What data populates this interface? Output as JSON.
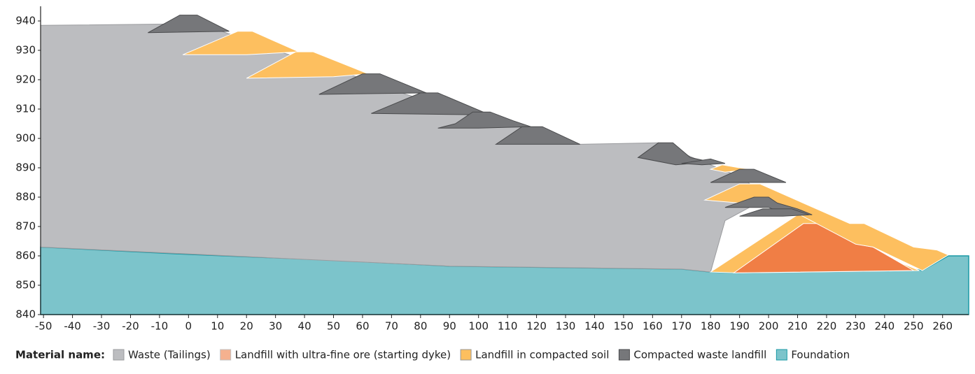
{
  "chart_data": {
    "type": "cross-section",
    "xlim": [
      -51,
      269
    ],
    "ylim": [
      840,
      945
    ],
    "xticks": [
      -50,
      -40,
      -30,
      -20,
      -10,
      0,
      10,
      20,
      30,
      40,
      50,
      60,
      70,
      80,
      90,
      100,
      110,
      120,
      130,
      140,
      150,
      160,
      170,
      180,
      190,
      200,
      210,
      220,
      230,
      240,
      250,
      260
    ],
    "yticks": [
      840,
      850,
      860,
      870,
      880,
      890,
      900,
      910,
      920,
      930,
      940
    ],
    "legend_title": "Material name:",
    "materials": [
      {
        "name": "Waste (Tailings)",
        "color": "#bcbdc0"
      },
      {
        "name": "Landfill with ultra-fine ore (starting dyke)",
        "color": "#f07e45"
      },
      {
        "name": "Landfill in compacted soil",
        "color": "#fdbf5f"
      },
      {
        "name": "Compacted waste landfill",
        "color": "#76777a"
      },
      {
        "name": "Foundation",
        "color": "#7cc4cb"
      }
    ],
    "regions": [
      {
        "material": 4,
        "x": [
          -51,
          0,
          50,
          90,
          170,
          180,
          190,
          230,
          235,
          250,
          253,
          262,
          269,
          269,
          -51
        ],
        "y": [
          863,
          860.5,
          858.5,
          856.5,
          855.5,
          854.5,
          854.2,
          855,
          856,
          855.5,
          855,
          860,
          860,
          840,
          840
        ]
      },
      {
        "material": 0,
        "x": [
          -51,
          -2,
          10,
          30,
          55,
          75,
          95,
          115,
          135,
          162,
          175,
          190,
          200,
          185,
          180,
          170,
          90,
          -51
        ],
        "y": [
          938.5,
          939,
          937,
          930,
          922,
          915,
          909,
          904,
          898,
          898.5,
          893,
          887,
          880,
          872,
          854.5,
          855.5,
          856.5,
          863
        ]
      },
      {
        "material": 2,
        "x": [
          180,
          210,
          215,
          230,
          252,
          190
        ],
        "y": [
          854.5,
          874,
          874,
          864,
          855,
          854.2
        ]
      },
      {
        "material": 1,
        "x": [
          188,
          212,
          217,
          230,
          236,
          250
        ],
        "y": [
          854.2,
          871,
          871,
          864,
          863,
          855
        ]
      },
      {
        "material": 2,
        "x": [
          178,
          190,
          197,
          228,
          233,
          250,
          258,
          262,
          253,
          236,
          230,
          205,
          200,
          190
        ],
        "y": [
          879,
          884.5,
          884.5,
          871,
          871,
          863,
          862,
          860.3,
          855,
          863,
          864,
          877,
          878,
          878
        ]
      },
      {
        "material": 2,
        "x": [
          180,
          184,
          190,
          194,
          185
        ],
        "y": [
          889.5,
          891,
          890,
          889.5,
          888.5
        ]
      },
      {
        "material": 2,
        "x": [
          -2,
          17,
          22,
          38,
          20
        ],
        "y": [
          928.5,
          936.5,
          936.5,
          929.5,
          928.5
        ]
      },
      {
        "material": 2,
        "x": [
          20,
          37,
          43,
          62,
          50
        ],
        "y": [
          920.5,
          929.5,
          929.5,
          922,
          921
        ]
      },
      {
        "material": 3,
        "x": [
          -14,
          -3,
          3,
          14
        ],
        "y": [
          936,
          942,
          942,
          936.5
        ]
      },
      {
        "material": 3,
        "x": [
          45,
          60,
          66,
          82
        ],
        "y": [
          915,
          922,
          922,
          915.5
        ]
      },
      {
        "material": 3,
        "x": [
          63,
          80,
          86,
          104
        ],
        "y": [
          908.5,
          915.5,
          915.5,
          908
        ]
      },
      {
        "material": 3,
        "x": [
          86,
          92,
          98,
          104,
          112,
          118,
          100
        ],
        "y": [
          903.5,
          905,
          909,
          909,
          906,
          904,
          903.5
        ]
      },
      {
        "material": 3,
        "x": [
          106,
          115,
          122,
          135
        ],
        "y": [
          898,
          904,
          904,
          898
        ]
      },
      {
        "material": 3,
        "x": [
          155,
          162,
          167,
          173,
          180,
          168
        ],
        "y": [
          893.5,
          898.5,
          898.5,
          893.5,
          892,
          891
        ]
      },
      {
        "material": 3,
        "x": [
          170,
          180,
          185,
          177
        ],
        "y": [
          891.5,
          893,
          891.5,
          891
        ]
      },
      {
        "material": 3,
        "x": [
          180,
          190,
          195,
          206
        ],
        "y": [
          885,
          889.5,
          889.5,
          885
        ]
      },
      {
        "material": 3,
        "x": [
          185,
          195,
          200,
          203,
          210,
          215,
          205,
          200
        ],
        "y": [
          876.5,
          880,
          880,
          878,
          876,
          874,
          874.5,
          876.5
        ]
      },
      {
        "material": 3,
        "x": [
          190,
          198,
          208,
          214,
          205
        ],
        "y": [
          873.5,
          876,
          876,
          874,
          873.5
        ]
      }
    ]
  }
}
